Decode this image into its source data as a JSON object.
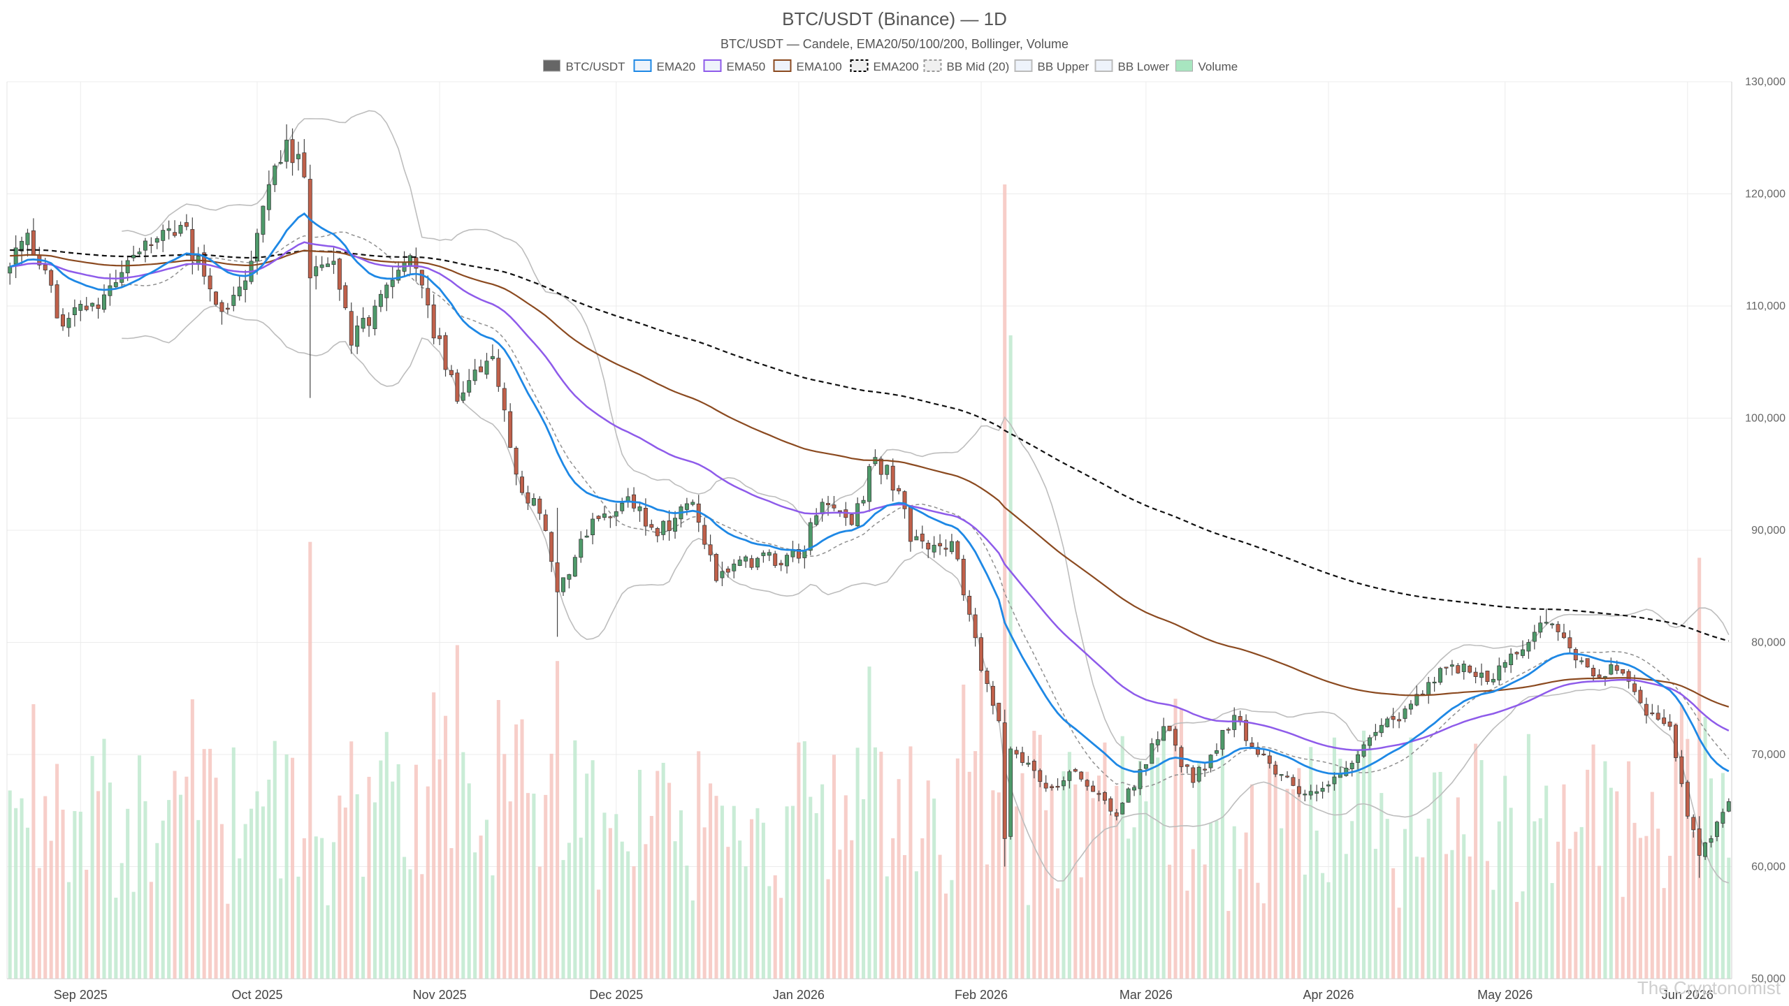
{
  "header": {
    "title": "BTC/USDT (Binance) — 1D",
    "subtitle": "BTC/USDT — Candele, EMA20/50/100/200, Bollinger, Volume"
  },
  "legend": [
    {
      "label": "BTC/USDT",
      "color": "#666666",
      "style": "solid-box"
    },
    {
      "label": "EMA20",
      "color": "#1e88e5",
      "style": "line"
    },
    {
      "label": "EMA50",
      "color": "#8e5bea",
      "style": "line"
    },
    {
      "label": "EMA100",
      "color": "#8b4a20",
      "style": "line"
    },
    {
      "label": "EMA200",
      "color": "#000000",
      "style": "dashed"
    },
    {
      "label": "BB Mid (20)",
      "color": "#999999",
      "style": "dashed"
    },
    {
      "label": "BB Upper",
      "color": "#bbbbbb",
      "style": "line"
    },
    {
      "label": "BB Lower",
      "color": "#bbbbbb",
      "style": "line"
    },
    {
      "label": "Volume",
      "color": "#a8e6c0",
      "style": "solid-box"
    }
  ],
  "watermark": "The Cryptonomist",
  "chart_data": {
    "type": "candlestick",
    "interval": "1D",
    "x_start": "2025-08-20",
    "x_end": "2026-06-08",
    "ylim": [
      50000,
      130000
    ],
    "y_ticks": [
      "50,000",
      "60,000",
      "70,000",
      "80,000",
      "90,000",
      "100,000",
      "110,000",
      "120,000",
      "130,000"
    ],
    "y_tick_values": [
      50000,
      60000,
      70000,
      80000,
      90000,
      100000,
      110000,
      120000,
      130000
    ],
    "y_axis_position": "right",
    "x_ticks": [
      {
        "label": "Sep 2025",
        "date": "2025-09-01"
      },
      {
        "label": "Oct 2025",
        "date": "2025-10-01"
      },
      {
        "label": "Nov 2025",
        "date": "2025-11-01"
      },
      {
        "label": "Dec 2025",
        "date": "2025-12-01"
      },
      {
        "label": "Jan 2026",
        "date": "2026-01-01"
      },
      {
        "label": "Feb 2026",
        "date": "2026-02-01"
      },
      {
        "label": "Mar 2026",
        "date": "2026-03-01"
      },
      {
        "label": "Apr 2026",
        "date": "2026-04-01"
      },
      {
        "label": "May 2026",
        "date": "2026-05-01"
      },
      {
        "label": "Jun 2026",
        "date": "2026-06-01"
      }
    ],
    "grid": true,
    "colors": {
      "up": "#4e9a6a",
      "down": "#c0604a",
      "volume_up": "#bfe9cf",
      "volume_down": "#f6c6bf"
    },
    "price_anchors": [
      {
        "date": "2025-08-20",
        "close": 113500
      },
      {
        "date": "2025-08-23",
        "close": 116500
      },
      {
        "date": "2025-08-29",
        "close": 108200
      },
      {
        "date": "2025-09-05",
        "close": 111000
      },
      {
        "date": "2025-09-12",
        "close": 115800
      },
      {
        "date": "2025-09-18",
        "close": 117200
      },
      {
        "date": "2025-09-25",
        "close": 109500
      },
      {
        "date": "2025-09-30",
        "close": 114000
      },
      {
        "date": "2025-10-04",
        "close": 122500
      },
      {
        "date": "2025-10-06",
        "close": 124800
      },
      {
        "date": "2025-10-09",
        "close": 121500
      },
      {
        "date": "2025-10-10",
        "close": 112500
      },
      {
        "date": "2025-10-14",
        "close": 114000
      },
      {
        "date": "2025-10-17",
        "close": 106500
      },
      {
        "date": "2025-10-21",
        "close": 110000
      },
      {
        "date": "2025-10-27",
        "close": 114500
      },
      {
        "date": "2025-11-04",
        "close": 101500
      },
      {
        "date": "2025-11-10",
        "close": 105500
      },
      {
        "date": "2025-11-14",
        "close": 95000
      },
      {
        "date": "2025-11-18",
        "close": 91500
      },
      {
        "date": "2025-11-21",
        "close": 84500
      },
      {
        "date": "2025-11-27",
        "close": 91000
      },
      {
        "date": "2025-12-03",
        "close": 93000
      },
      {
        "date": "2025-12-08",
        "close": 89500
      },
      {
        "date": "2025-12-14",
        "close": 92500
      },
      {
        "date": "2025-12-18",
        "close": 85500
      },
      {
        "date": "2025-12-25",
        "close": 87500
      },
      {
        "date": "2026-01-01",
        "close": 87500
      },
      {
        "date": "2026-01-05",
        "close": 92500
      },
      {
        "date": "2026-01-10",
        "close": 90500
      },
      {
        "date": "2026-01-14",
        "close": 96500
      },
      {
        "date": "2026-01-18",
        "close": 93500
      },
      {
        "date": "2026-01-20",
        "close": 89000
      },
      {
        "date": "2026-01-27",
        "close": 89000
      },
      {
        "date": "2026-01-30",
        "close": 82500
      },
      {
        "date": "2026-02-01",
        "close": 77500
      },
      {
        "date": "2026-02-04",
        "close": 73000
      },
      {
        "date": "2026-02-05",
        "close": 62500
      },
      {
        "date": "2026-02-06",
        "close": 70500
      },
      {
        "date": "2026-02-12",
        "close": 67000
      },
      {
        "date": "2026-02-17",
        "close": 68500
      },
      {
        "date": "2026-02-24",
        "close": 64500
      },
      {
        "date": "2026-03-04",
        "close": 72500
      },
      {
        "date": "2026-03-09",
        "close": 67500
      },
      {
        "date": "2026-03-16",
        "close": 73500
      },
      {
        "date": "2026-03-20",
        "close": 70000
      },
      {
        "date": "2026-03-27",
        "close": 66500
      },
      {
        "date": "2026-04-02",
        "close": 68000
      },
      {
        "date": "2026-04-08",
        "close": 71500
      },
      {
        "date": "2026-04-15",
        "close": 74500
      },
      {
        "date": "2026-04-22",
        "close": 78000
      },
      {
        "date": "2026-04-28",
        "close": 76500
      },
      {
        "date": "2026-05-05",
        "close": 80000
      },
      {
        "date": "2026-05-08",
        "close": 81800
      },
      {
        "date": "2026-05-12",
        "close": 79500
      },
      {
        "date": "2026-05-16",
        "close": 77000
      },
      {
        "date": "2026-05-20",
        "close": 77500
      },
      {
        "date": "2026-05-25",
        "close": 73500
      },
      {
        "date": "2026-05-29",
        "close": 72500
      },
      {
        "date": "2026-06-01",
        "close": 64500
      },
      {
        "date": "2026-06-03",
        "close": 61000
      },
      {
        "date": "2026-06-05",
        "close": 62500
      },
      {
        "date": "2026-06-08",
        "close": 65800
      }
    ],
    "volume_spikes": [
      {
        "date": "2025-10-10",
        "value": 0.55
      },
      {
        "date": "2025-11-04",
        "value": 0.42
      },
      {
        "date": "2025-11-21",
        "value": 0.4
      },
      {
        "date": "2026-02-05",
        "value": 1.0
      },
      {
        "date": "2026-02-06",
        "value": 0.81
      },
      {
        "date": "2026-06-03",
        "value": 0.53
      }
    ]
  }
}
